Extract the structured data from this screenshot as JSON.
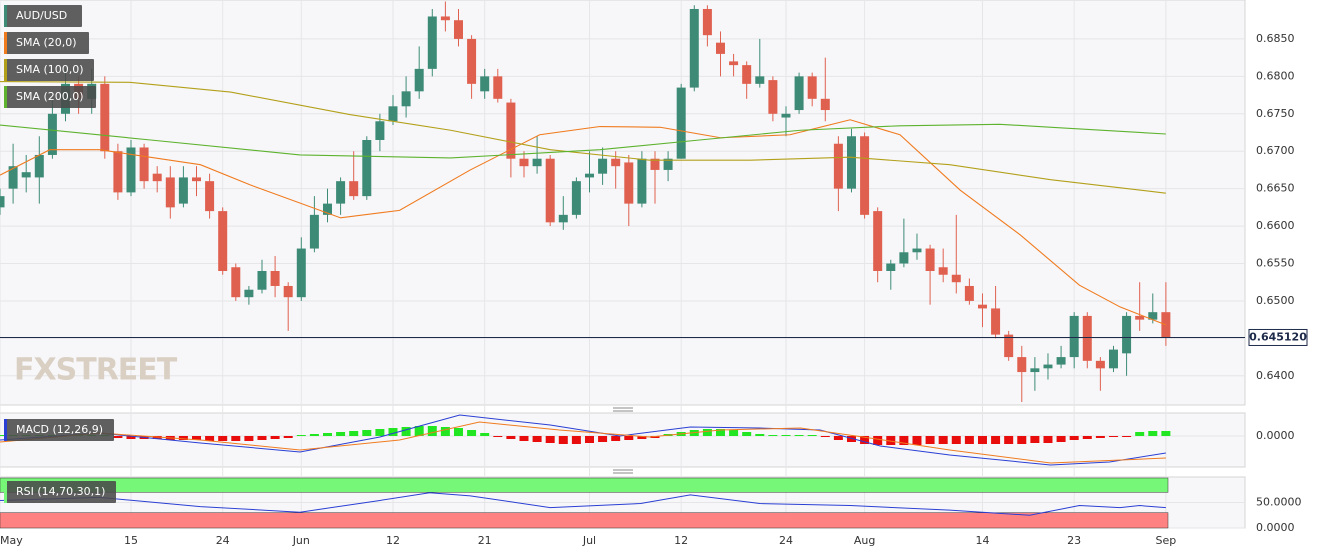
{
  "chart_data": [
    {
      "type": "candlestick",
      "symbol": "AUD/USD",
      "watermark": "FXSTREET",
      "up_color": "#3d8b76",
      "down_color": "#e0604f",
      "xlim": [
        0,
        95.04
      ],
      "xticks": [
        {
          "value": 0,
          "label": "May"
        },
        {
          "value": 10,
          "label": "15"
        },
        {
          "value": 17,
          "label": "24"
        },
        {
          "value": 23,
          "label": "Jun"
        },
        {
          "value": 30,
          "label": "12"
        },
        {
          "value": 37,
          "label": "21"
        },
        {
          "value": 45,
          "label": "Jul"
        },
        {
          "value": 52,
          "label": "12"
        },
        {
          "value": 60,
          "label": "24"
        },
        {
          "value": 66,
          "label": "Aug"
        },
        {
          "value": 75,
          "label": "14"
        },
        {
          "value": 82,
          "label": "23"
        },
        {
          "value": 89,
          "label": "Sep"
        }
      ],
      "ylim": [
        0.6361,
        0.6902
      ],
      "yticks": [
        {
          "value": 0.64,
          "label": "0.6400"
        },
        {
          "value": 0.645,
          "label": "0.6450"
        },
        {
          "value": 0.65,
          "label": "0.6500"
        },
        {
          "value": 0.655,
          "label": "0.6550"
        },
        {
          "value": 0.66,
          "label": "0.6600"
        },
        {
          "value": 0.665,
          "label": "0.6650"
        },
        {
          "value": 0.67,
          "label": "0.6700"
        },
        {
          "value": 0.675,
          "label": "0.6750"
        },
        {
          "value": 0.68,
          "label": "0.6800"
        },
        {
          "value": 0.685,
          "label": "0.6850"
        }
      ],
      "grid": true,
      "last_price": {
        "value": 0.64512,
        "label": "0.645120"
      },
      "open": [
        0.6625,
        0.665,
        0.6665,
        0.6665,
        0.6695,
        0.675,
        0.679,
        0.677,
        0.679,
        0.67,
        0.6645,
        0.6705,
        0.667,
        0.6665,
        0.663,
        0.6665,
        0.666,
        0.662,
        0.6545,
        0.6505,
        0.6515,
        0.654,
        0.652,
        0.6505,
        0.657,
        0.6615,
        0.663,
        0.666,
        0.664,
        0.6715,
        0.674,
        0.676,
        0.678,
        0.681,
        0.688,
        0.6875,
        0.685,
        0.678,
        0.68,
        0.6765,
        0.669,
        0.668,
        0.669,
        0.6605,
        0.6615,
        0.6665,
        0.667,
        0.669,
        0.6685,
        0.663,
        0.669,
        0.6675,
        0.669,
        0.6785,
        0.689,
        0.6845,
        0.682,
        0.6815,
        0.679,
        0.6795,
        0.6745,
        0.6755,
        0.68,
        0.677,
        0.671,
        0.665,
        0.672,
        0.662,
        0.654,
        0.655,
        0.6565,
        0.657,
        0.6545,
        0.6535,
        0.652,
        0.6495,
        0.649,
        0.6455,
        0.6425,
        0.6405,
        0.641,
        0.6415,
        0.6425,
        0.648,
        0.642,
        0.641,
        0.643,
        0.648,
        0.6475,
        0.6485
      ],
      "high": [
        0.665,
        0.671,
        0.6695,
        0.672,
        0.677,
        0.681,
        0.68,
        0.681,
        0.68,
        0.671,
        0.6715,
        0.671,
        0.668,
        0.668,
        0.668,
        0.668,
        0.667,
        0.6625,
        0.655,
        0.652,
        0.6555,
        0.656,
        0.6525,
        0.6585,
        0.664,
        0.665,
        0.6665,
        0.67,
        0.672,
        0.675,
        0.6775,
        0.68,
        0.684,
        0.689,
        0.69,
        0.689,
        0.6855,
        0.681,
        0.681,
        0.677,
        0.67,
        0.672,
        0.6695,
        0.664,
        0.6665,
        0.67,
        0.6705,
        0.67,
        0.6695,
        0.67,
        0.67,
        0.67,
        0.679,
        0.6895,
        0.6895,
        0.686,
        0.683,
        0.682,
        0.685,
        0.68,
        0.676,
        0.6805,
        0.6805,
        0.6825,
        0.672,
        0.673,
        0.6725,
        0.6625,
        0.6555,
        0.661,
        0.659,
        0.6575,
        0.657,
        0.6615,
        0.653,
        0.651,
        0.652,
        0.646,
        0.644,
        0.6425,
        0.643,
        0.644,
        0.6485,
        0.6485,
        0.6425,
        0.644,
        0.6485,
        0.6525,
        0.651,
        0.6525
      ],
      "low": [
        0.6615,
        0.663,
        0.6645,
        0.663,
        0.669,
        0.674,
        0.675,
        0.675,
        0.669,
        0.6635,
        0.664,
        0.665,
        0.6645,
        0.661,
        0.6625,
        0.664,
        0.661,
        0.6535,
        0.65,
        0.6495,
        0.651,
        0.6505,
        0.646,
        0.65,
        0.6565,
        0.6605,
        0.6615,
        0.6635,
        0.6635,
        0.67,
        0.6735,
        0.6745,
        0.677,
        0.68,
        0.686,
        0.684,
        0.677,
        0.677,
        0.6765,
        0.6665,
        0.6665,
        0.667,
        0.66,
        0.6595,
        0.661,
        0.6645,
        0.6655,
        0.665,
        0.66,
        0.6625,
        0.663,
        0.666,
        0.669,
        0.678,
        0.684,
        0.68,
        0.68,
        0.677,
        0.6785,
        0.674,
        0.672,
        0.675,
        0.676,
        0.674,
        0.662,
        0.6645,
        0.661,
        0.6525,
        0.6515,
        0.6545,
        0.6555,
        0.6495,
        0.6525,
        0.651,
        0.6495,
        0.6465,
        0.645,
        0.642,
        0.6365,
        0.638,
        0.6395,
        0.641,
        0.641,
        0.641,
        0.638,
        0.6405,
        0.64,
        0.646,
        0.647,
        0.644
      ],
      "close": [
        0.664,
        0.668,
        0.6672,
        0.6695,
        0.675,
        0.679,
        0.677,
        0.679,
        0.67,
        0.6645,
        0.6705,
        0.666,
        0.666,
        0.6625,
        0.6665,
        0.666,
        0.662,
        0.654,
        0.6505,
        0.6515,
        0.654,
        0.652,
        0.6505,
        0.657,
        0.6615,
        0.663,
        0.666,
        0.664,
        0.6715,
        0.674,
        0.676,
        0.678,
        0.681,
        0.688,
        0.6875,
        0.685,
        0.679,
        0.68,
        0.677,
        0.669,
        0.668,
        0.669,
        0.6605,
        0.6615,
        0.666,
        0.667,
        0.669,
        0.668,
        0.663,
        0.669,
        0.6675,
        0.669,
        0.6785,
        0.689,
        0.6855,
        0.683,
        0.6815,
        0.679,
        0.68,
        0.675,
        0.675,
        0.68,
        0.677,
        0.6755,
        0.665,
        0.672,
        0.6615,
        0.654,
        0.655,
        0.6565,
        0.657,
        0.654,
        0.6535,
        0.6525,
        0.65,
        0.649,
        0.6455,
        0.6425,
        0.6405,
        0.641,
        0.6415,
        0.6425,
        0.648,
        0.642,
        0.641,
        0.6435,
        0.648,
        0.6475,
        0.6485,
        0.64512
      ],
      "series": [
        {
          "name": "SMA (20,0)",
          "color": "#f07b1f",
          "x": [
            0,
            3.8,
            7.6,
            15.3,
            19.1,
            26,
            30.5,
            35.9,
            41.2,
            45.8,
            50.4,
            55,
            60.3,
            64.9,
            68.7,
            73.3,
            77.9,
            82.4,
            85.5,
            89
          ],
          "values": [
            0.6668,
            0.6702,
            0.6702,
            0.6682,
            0.6655,
            0.6611,
            0.6621,
            0.6675,
            0.6722,
            0.6733,
            0.6732,
            0.6718,
            0.6722,
            0.6742,
            0.6722,
            0.6648,
            0.6588,
            0.6521,
            0.6492,
            0.6468
          ]
        },
        {
          "name": "SMA (100,0)",
          "color": "#b3a01a",
          "x": [
            0,
            9.9,
            17.6,
            26.7,
            34.4,
            42,
            49.6,
            57.3,
            64.9,
            72.5,
            80.2,
            89
          ],
          "values": [
            0.6793,
            0.6792,
            0.6779,
            0.6749,
            0.6728,
            0.6702,
            0.6688,
            0.6688,
            0.6692,
            0.6682,
            0.6662,
            0.6644
          ]
        },
        {
          "name": "SMA (200,0)",
          "color": "#5db22e",
          "x": [
            0,
            11.5,
            22.9,
            34.4,
            45.8,
            53.4,
            61.1,
            68.7,
            76.3,
            89
          ],
          "values": [
            0.6735,
            0.6715,
            0.6695,
            0.6691,
            0.6702,
            0.6715,
            0.6728,
            0.6734,
            0.6736,
            0.6723
          ]
        }
      ]
    },
    {
      "type": "macd",
      "title": "MACD (12,26,9)",
      "ylim": [
        -0.0031,
        0.0023
      ],
      "yticks": [
        {
          "value": 0,
          "label": "0.0000"
        }
      ],
      "histogram": [
        0.0001,
        0.0001,
        0.0001,
        0.0001,
        0.0001,
        0.0001,
        0.0001,
        0.0001,
        0.0001,
        -0.0002,
        -0.0003,
        -0.0003,
        -0.0003,
        -0.0004,
        -0.0004,
        -0.0004,
        -0.0005,
        -0.0005,
        -0.0005,
        -0.0005,
        -0.0004,
        -0.0003,
        -0.0002,
        0.0001,
        0.0002,
        0.0003,
        0.0004,
        0.0005,
        0.0006,
        0.0007,
        0.0008,
        0.0009,
        0.001,
        0.001,
        0.0009,
        0.0008,
        0.0006,
        0.0003,
        -0.0001,
        -0.0003,
        -0.0005,
        -0.0006,
        -0.0007,
        -0.0008,
        -0.0008,
        -0.0007,
        -0.0006,
        -0.0005,
        -0.0004,
        -0.0003,
        -0.0002,
        0.0002,
        0.0004,
        0.0006,
        0.0007,
        0.0007,
        0.0006,
        0.0004,
        0.0002,
        0.0001,
        0.0001,
        0.0001,
        0.0001,
        -0.0001,
        -0.0004,
        -0.0006,
        -0.0008,
        -0.0009,
        -0.0009,
        -0.0009,
        -0.0009,
        -0.0008,
        -0.0008,
        -0.0008,
        -0.0008,
        -0.0008,
        -0.0008,
        -0.0008,
        -0.0008,
        -0.0007,
        -0.0007,
        -0.0006,
        -0.0004,
        -0.0003,
        -0.0002,
        -0.0001,
        -0.0001,
        0.0004,
        0.0005,
        0.0005
      ],
      "up_color": "#22e622",
      "down_color": "#e80c0c",
      "series": [
        {
          "color": "#2a3fd4",
          "x": [
            0,
            7.6,
            15.3,
            22.9,
            29,
            35.1,
            42,
            47.3,
            52.7,
            58,
            62.6,
            67.2,
            72.5,
            80.2,
            84.7,
            89
          ],
          "values": [
            -0.0004,
            0.0003,
            -0.0007,
            -0.0016,
            -0.0001,
            0.0021,
            0.0011,
            0,
            0.0009,
            0.0008,
            0.0006,
            -0.001,
            -0.0019,
            -0.0029,
            -0.0026,
            -0.0017
          ]
        },
        {
          "color": "#f07b1f",
          "x": [
            0,
            7.6,
            15.3,
            22.9,
            30.5,
            36.6,
            42.7,
            49.6,
            55,
            61.1,
            66.4,
            72.5,
            80.2,
            89
          ],
          "values": [
            -0.0006,
            0.0003,
            -0.0004,
            -0.0014,
            -0.0004,
            0.0014,
            0.0006,
            -0.0001,
            0.0006,
            0.0008,
            -0.0002,
            -0.0014,
            -0.0027,
            -0.0022
          ]
        }
      ]
    },
    {
      "type": "rsi",
      "title": "RSI (14,70,30,1)",
      "ylim": [
        0,
        100
      ],
      "yticks": [
        {
          "value": 0,
          "label": "0.0000"
        },
        {
          "value": 50,
          "label": "50.0000"
        }
      ],
      "overbought": 70,
      "oversold": 30,
      "overbought_color": "#77f777",
      "oversold_color": "#ff8282",
      "series": [
        {
          "color": "#2a3fd4",
          "x": [
            0,
            7.6,
            15.3,
            22.9,
            29,
            32.8,
            35.9,
            42,
            48.9,
            52.7,
            58,
            64.9,
            72.5,
            78.6,
            82.4,
            85.5,
            87,
            89
          ],
          "values": [
            54,
            60,
            42,
            31,
            54,
            69,
            63,
            40,
            48,
            65,
            48,
            44,
            35,
            25,
            44,
            40,
            44,
            40
          ]
        }
      ]
    }
  ]
}
